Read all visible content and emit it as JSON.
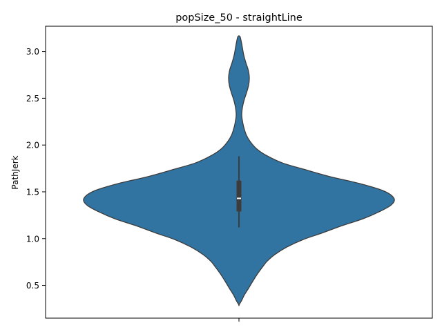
{
  "chart_data": {
    "type": "violin",
    "title": "popSize_50 - straightLine",
    "xlabel": "",
    "ylabel": "PathJerk",
    "ylim": [
      0.15,
      3.27
    ],
    "yticks": [
      0.5,
      1.0,
      1.5,
      2.0,
      2.5,
      3.0
    ],
    "ytick_labels": [
      "0.5",
      "1.0",
      "1.5",
      "2.0",
      "2.5",
      "3.0"
    ],
    "grid": false,
    "violin_color": "#3274a1",
    "outline_color": "#3c3c3c",
    "density_profile": [
      {
        "y": 0.29,
        "w": 0.0
      },
      {
        "y": 0.34,
        "w": 0.08
      },
      {
        "y": 0.4,
        "w": 0.16
      },
      {
        "y": 0.47,
        "w": 0.28
      },
      {
        "y": 0.55,
        "w": 0.41
      },
      {
        "y": 0.63,
        "w": 0.55
      },
      {
        "y": 0.71,
        "w": 0.71
      },
      {
        "y": 0.76,
        "w": 0.82
      },
      {
        "y": 0.83,
        "w": 1.04
      },
      {
        "y": 0.91,
        "w": 1.39
      },
      {
        "y": 0.99,
        "w": 1.86
      },
      {
        "y": 1.06,
        "w": 2.41
      },
      {
        "y": 1.14,
        "w": 3.0
      },
      {
        "y": 1.21,
        "w": 3.58
      },
      {
        "y": 1.29,
        "w": 4.08
      },
      {
        "y": 1.36,
        "w": 4.41
      },
      {
        "y": 1.43,
        "w": 4.49
      },
      {
        "y": 1.51,
        "w": 4.19
      },
      {
        "y": 1.59,
        "w": 3.48
      },
      {
        "y": 1.66,
        "w": 2.66
      },
      {
        "y": 1.74,
        "w": 1.89
      },
      {
        "y": 1.81,
        "w": 1.25
      },
      {
        "y": 1.89,
        "w": 0.79
      },
      {
        "y": 1.96,
        "w": 0.51
      },
      {
        "y": 2.04,
        "w": 0.32
      },
      {
        "y": 2.11,
        "w": 0.21
      },
      {
        "y": 2.19,
        "w": 0.14
      },
      {
        "y": 2.26,
        "w": 0.1
      },
      {
        "y": 2.32,
        "w": 0.08
      },
      {
        "y": 2.4,
        "w": 0.1
      },
      {
        "y": 2.48,
        "w": 0.15
      },
      {
        "y": 2.56,
        "w": 0.22
      },
      {
        "y": 2.64,
        "w": 0.28
      },
      {
        "y": 2.72,
        "w": 0.3
      },
      {
        "y": 2.8,
        "w": 0.27
      },
      {
        "y": 2.88,
        "w": 0.2
      },
      {
        "y": 2.96,
        "w": 0.14
      },
      {
        "y": 3.04,
        "w": 0.1
      },
      {
        "y": 3.1,
        "w": 0.07
      },
      {
        "y": 3.16,
        "w": 0.03
      }
    ],
    "box": {
      "whisker_low": 1.12,
      "q1": 1.29,
      "median": 1.43,
      "q3": 1.62,
      "whisker_high": 1.88
    }
  }
}
